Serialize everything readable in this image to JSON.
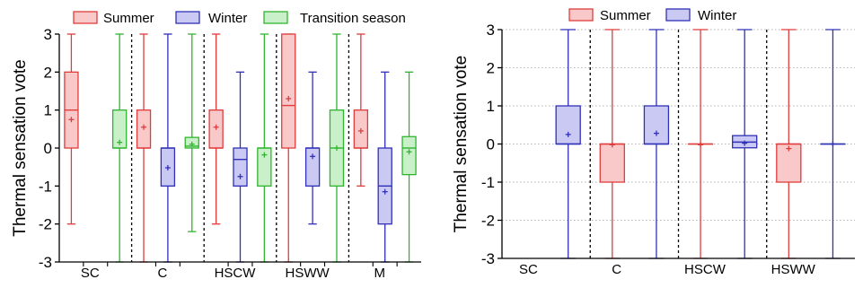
{
  "chart_data": [
    {
      "type": "box",
      "title": "",
      "ylabel": "Thermal sensation vote",
      "ylim": [
        -3,
        3
      ],
      "yticks": [
        3,
        2,
        1,
        0,
        -1,
        -2,
        -3
      ],
      "grid": false,
      "legend_position": "top",
      "legend": [
        "Summer",
        "Winter",
        "Transition season"
      ],
      "series_colors": {
        "Summer": "#e03c3c",
        "Winter": "#3030b8",
        "Transition season": "#2fb52f"
      },
      "series_fills": {
        "Summer": "#f9c9c9",
        "Winter": "#c9c9f4",
        "Transition season": "#c9f0c9"
      },
      "categories": [
        "SC",
        "C",
        "HSCW",
        "HSWW",
        "M"
      ],
      "boxes": [
        {
          "category": "SC",
          "series": "Summer",
          "min": -2,
          "q1": 0,
          "median": 1,
          "q3": 2,
          "max": 3,
          "mean": 0.75
        },
        {
          "category": "SC",
          "series": "Transition season",
          "min": -3,
          "q1": 0,
          "median": 0,
          "q3": 1,
          "max": 3,
          "mean": 0.15
        },
        {
          "category": "C",
          "series": "Summer",
          "min": -3,
          "q1": 0,
          "median": 0,
          "q3": 1,
          "max": 3,
          "mean": 0.55
        },
        {
          "category": "C",
          "series": "Winter",
          "min": -3,
          "q1": -1,
          "median": 0,
          "q3": 0,
          "max": 3,
          "mean": -0.52
        },
        {
          "category": "C",
          "series": "Transition season",
          "min": -2.2,
          "q1": 0,
          "median": 0.05,
          "q3": 0.28,
          "max": 3,
          "mean": 0.1
        },
        {
          "category": "HSCW",
          "series": "Summer",
          "min": -2,
          "q1": 0,
          "median": 0,
          "q3": 1,
          "max": 3,
          "mean": 0.55
        },
        {
          "category": "HSCW",
          "series": "Winter",
          "min": -3,
          "q1": -1,
          "median": -0.3,
          "q3": 0,
          "max": 2,
          "mean": -0.75
        },
        {
          "category": "HSCW",
          "series": "Transition season",
          "min": -3,
          "q1": -1,
          "median": 0,
          "q3": 0,
          "max": 3,
          "mean": -0.18
        },
        {
          "category": "HSWW",
          "series": "Summer",
          "min": -3,
          "q1": 0,
          "median": 1.12,
          "q3": 3,
          "max": 3,
          "mean": 1.3
        },
        {
          "category": "HSWW",
          "series": "Winter",
          "min": -2,
          "q1": -1,
          "median": 0,
          "q3": 0,
          "max": 2,
          "mean": -0.22
        },
        {
          "category": "HSWW",
          "series": "Transition season",
          "min": -3,
          "q1": -1,
          "median": 0,
          "q3": 1,
          "max": 3,
          "mean": 0
        },
        {
          "category": "M",
          "series": "Summer",
          "min": -1,
          "q1": 0,
          "median": 0,
          "q3": 1,
          "max": 3,
          "mean": 0.45
        },
        {
          "category": "M",
          "series": "Winter",
          "min": -3,
          "q1": -2,
          "median": -1,
          "q3": 0,
          "max": 2,
          "mean": -1.15
        },
        {
          "category": "M",
          "series": "Transition season",
          "min": -3,
          "q1": -0.7,
          "median": 0,
          "q3": 0.3,
          "max": 2,
          "mean": -0.1
        }
      ]
    },
    {
      "type": "box",
      "title": "",
      "ylabel": "Thermal sensation vote",
      "ylim": [
        -3,
        3
      ],
      "yticks": [
        3,
        2,
        1,
        0,
        -1,
        -2,
        -3
      ],
      "grid": true,
      "legend_position": "top",
      "legend": [
        "Summer",
        "Winter"
      ],
      "series_colors": {
        "Summer": "#e03c3c",
        "Winter": "#3030b8"
      },
      "series_fills": {
        "Summer": "#f9c9c9",
        "Winter": "#c9c9f4"
      },
      "categories": [
        "SC",
        "C",
        "HSCW",
        "HSWW"
      ],
      "boxes": [
        {
          "category": "SC",
          "series": "Winter",
          "min": -3,
          "q1": 0,
          "median": 0,
          "q3": 1,
          "max": 3,
          "mean": 0.25
        },
        {
          "category": "C",
          "series": "Summer",
          "min": -3,
          "q1": -1,
          "median": 0,
          "q3": 0,
          "max": 3,
          "mean": -0.02
        },
        {
          "category": "C",
          "series": "Winter",
          "min": -3,
          "q1": 0,
          "median": 0,
          "q3": 1,
          "max": 3,
          "mean": 0.28
        },
        {
          "category": "HSCW",
          "series": "Summer",
          "min": -3,
          "q1": 0,
          "median": 0,
          "q3": 0,
          "max": 3,
          "mean": -0.02
        },
        {
          "category": "HSCW",
          "series": "Winter",
          "min": -3,
          "q1": -0.1,
          "median": 0.05,
          "q3": 0.22,
          "max": 3,
          "mean": 0.02
        },
        {
          "category": "HSWW",
          "series": "Summer",
          "min": -3,
          "q1": -1,
          "median": 0,
          "q3": 0,
          "max": 3,
          "mean": -0.12
        },
        {
          "category": "HSWW",
          "series": "Winter",
          "min": -3,
          "q1": 0,
          "median": 0,
          "q3": 0,
          "max": 3,
          "mean": 0
        }
      ]
    }
  ]
}
